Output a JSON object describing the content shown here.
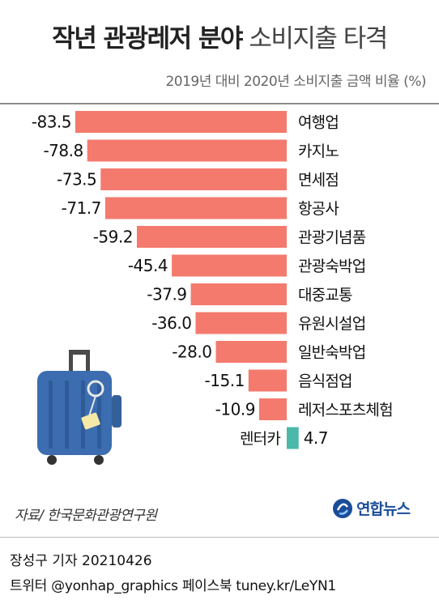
{
  "header": {
    "title_bold": "작년 관광레저 분야",
    "title_light": "소비지출 타격",
    "subtitle": "2019년 대비 2020년 소비지출 금액 비율 (%)"
  },
  "chart_data": {
    "type": "bar",
    "orientation": "horizontal",
    "title": "작년 관광레저 분야 소비지출 타격",
    "subtitle": "2019년 대비 2020년 소비지출 금액 비율 (%)",
    "categories": [
      "여행업",
      "카지노",
      "면세점",
      "항공사",
      "관광기념품",
      "관광숙박업",
      "대중교통",
      "유원시설업",
      "일반숙박업",
      "음식점업",
      "레저스포츠체험",
      "렌터카"
    ],
    "values": [
      -83.5,
      -78.8,
      -73.5,
      -71.7,
      -59.2,
      -45.4,
      -37.9,
      -36.0,
      -28.0,
      -15.1,
      -10.9,
      4.7
    ],
    "value_labels": [
      "-83.5",
      "-78.8",
      "-73.5",
      "-71.7",
      "-59.2",
      "-45.4",
      "-37.9",
      "-36.0",
      "-28.0",
      "-15.1",
      "-10.9",
      "4.7"
    ],
    "colors": {
      "negative": "#f47a6e",
      "positive": "#4bb8a9"
    },
    "xlabel": "",
    "ylabel": "",
    "grid": false
  },
  "source": "자료/ 한국문화관광연구원",
  "logo": {
    "text": "연합뉴스",
    "icon": "yonhap-logo-icon",
    "color": "#1a4d99"
  },
  "footer": {
    "reporter": "장성구 기자  20210426",
    "social": "트위터 @yonhap_graphics  페이스북 tuney.kr/LeYN1"
  },
  "illustration": {
    "icon": "suitcase-icon",
    "color": "#3b6db0"
  }
}
